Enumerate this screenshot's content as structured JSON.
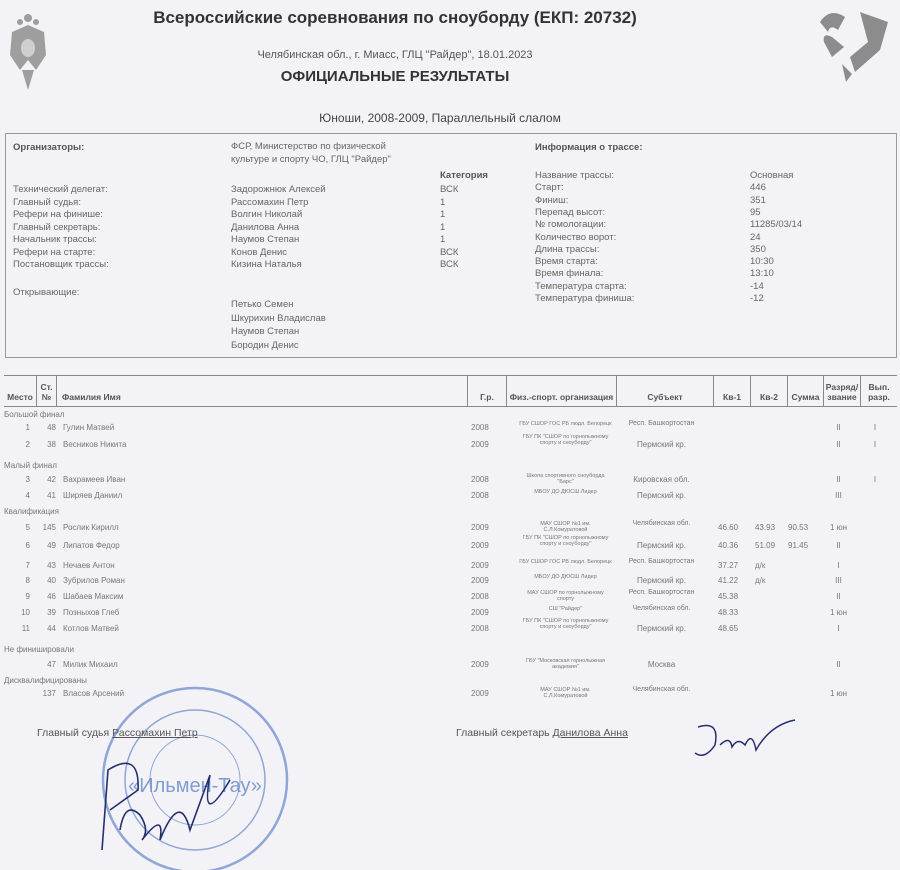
{
  "header": {
    "title": "Всероссийские соревнования по сноуборду (ЕКП: 20732)",
    "location": "Челябинская обл., г. Миасс, ГЛЦ \"Райдер\", 18.01.2023",
    "doc_title": "ОФИЦИАЛЬНЫЕ РЕЗУЛЬТАТЫ",
    "category": "Юноши, 2008-2009, Параллельный слалом",
    "left_logo": "coat-of-arms-icon",
    "right_logo": "sport-ministry-logo"
  },
  "officials": {
    "organizers_label": "Организаторы:",
    "organizers_value": "ФСР, Министерство по физической культуре и спорту ЧО, ГЛЦ \"Райдер\"",
    "category_header": "Категория",
    "rows": [
      {
        "role": "Технический делегат:",
        "name": "Задорожнюк Алексей",
        "cat": "ВСК"
      },
      {
        "role": "Главный судья:",
        "name": "Рассомахин Петр",
        "cat": "1"
      },
      {
        "role": "Рефери на финише:",
        "name": "Волгин Николай",
        "cat": "1"
      },
      {
        "role": "Главный секретарь:",
        "name": "Данилова Анна",
        "cat": "1"
      },
      {
        "role": "Начальник трассы:",
        "name": "Наумов Степан",
        "cat": "1"
      },
      {
        "role": "Рефери на старте:",
        "name": "Конов Денис",
        "cat": "ВСК"
      },
      {
        "role": "Постановщик трассы:",
        "name": "Кизина Наталья",
        "cat": "ВСК"
      }
    ],
    "openers_label": "Открывающие:",
    "openers": [
      "Петько Семен",
      "Шкурихин Владислав",
      "Наумов Степан",
      "Бородин Денис"
    ]
  },
  "track": {
    "title": "Информация о трассе:",
    "rows": [
      {
        "k": "Название трассы:",
        "v": "Основная"
      },
      {
        "k": "Старт:",
        "v": "446"
      },
      {
        "k": "Финиш:",
        "v": "351"
      },
      {
        "k": "Перепад высот:",
        "v": "95"
      },
      {
        "k": "№ гомологации:",
        "v": "11285/03/14"
      },
      {
        "k": "Количество ворот:",
        "v": "24"
      },
      {
        "k": "Длина трассы:",
        "v": "350"
      },
      {
        "k": "Время старта:",
        "v": "10:30"
      },
      {
        "k": "Время финала:",
        "v": "13:10"
      },
      {
        "k": "Температура старта:",
        "v": "-14"
      },
      {
        "k": "Температура финиша:",
        "v": "-12"
      }
    ]
  },
  "table": {
    "columns": {
      "place": "Место",
      "bib": "Ст. №",
      "name": "Фамилия Имя",
      "year": "Г.р.",
      "org": "Физ.-спорт. организация",
      "region": "Субъект",
      "q1": "Кв-1",
      "q2": "Кв-2",
      "sum": "Сумма",
      "rank": "Разряд/ звание",
      "earned": "Вып. разр."
    },
    "groups": [
      {
        "label": "Большой финал",
        "rows": [
          {
            "place": "1",
            "bib": "48",
            "name": "Гулин Матвей",
            "year": "2008",
            "org": "ГБУ СШОР ГОС РБ людл. Белорецк",
            "region": "Респ. Башкортостан",
            "q1": "",
            "q2": "",
            "sum": "",
            "rank": "II",
            "earned": "I"
          },
          {
            "place": "2",
            "bib": "38",
            "name": "Весников Никита",
            "year": "2009",
            "org": "ГБУ ПК \"СШОР по горнолыжному спорту и сноуборду\"",
            "region": "Пермский кр.",
            "q1": "",
            "q2": "",
            "sum": "",
            "rank": "II",
            "earned": "I"
          }
        ]
      },
      {
        "label": "Малый финал",
        "rows": [
          {
            "place": "3",
            "bib": "42",
            "name": "Вахрамеев Иван",
            "year": "2008",
            "org": "Школа спортивного сноуборда \"Барс\"",
            "region": "Кировская обл.",
            "q1": "",
            "q2": "",
            "sum": "",
            "rank": "II",
            "earned": "I"
          },
          {
            "place": "4",
            "bib": "41",
            "name": "Ширяев Даниил",
            "year": "2008",
            "org": "МБОУ ДО ДЮСШ Лидер",
            "region": "Пермский кр.",
            "q1": "",
            "q2": "",
            "sum": "",
            "rank": "III",
            "earned": ""
          }
        ]
      },
      {
        "label": "Квалификация",
        "rows": [
          {
            "place": "5",
            "bib": "145",
            "name": "Рослик Кирилл",
            "year": "2009",
            "org": "МАУ СШОР №1 им. С.Л.Комуратовой",
            "region": "Челябинская обл.",
            "q1": "46.60",
            "q2": "43.93",
            "sum": "90.53",
            "rank": "1 юн",
            "earned": ""
          },
          {
            "place": "6",
            "bib": "49",
            "name": "Липатов Федор",
            "year": "2009",
            "org": "ГБУ ПК \"СШОР по горнолыжному спорту и сноуборду\"",
            "region": "Пермский кр.",
            "q1": "40.36",
            "q2": "51.09",
            "sum": "91.45",
            "rank": "II",
            "earned": ""
          },
          {
            "place": "7",
            "bib": "43",
            "name": "Нечаев Антон",
            "year": "2009",
            "org": "ГБУ СШОР ГОС РБ людл. Белорецк",
            "region": "Респ. Башкортостан",
            "q1": "37.27",
            "q2": "д/к",
            "sum": "",
            "rank": "I",
            "earned": ""
          },
          {
            "place": "8",
            "bib": "40",
            "name": "Зубрилов Роман",
            "year": "2009",
            "org": "МБОУ ДО ДЮСШ Лидер",
            "region": "Пермский кр.",
            "q1": "41.22",
            "q2": "д/к",
            "sum": "",
            "rank": "III",
            "earned": ""
          },
          {
            "place": "9",
            "bib": "46",
            "name": "Шабаев Максим",
            "year": "2008",
            "org": "МАУ СШОР по горнолыжному спорту",
            "region": "Респ. Башкортостан",
            "q1": "45.38",
            "q2": "",
            "sum": "",
            "rank": "II",
            "earned": ""
          },
          {
            "place": "10",
            "bib": "39",
            "name": "Позныхов Глеб",
            "year": "2009",
            "org": "СШ \"Райдер\"",
            "region": "Челябинская обл.",
            "q1": "48.33",
            "q2": "",
            "sum": "",
            "rank": "1 юн",
            "earned": ""
          },
          {
            "place": "11",
            "bib": "44",
            "name": "Котлов Матвей",
            "year": "2008",
            "org": "ГБУ ПК \"СШОР по горнолыжному спорту и сноуборду\"",
            "region": "Пермский кр.",
            "q1": "48.65",
            "q2": "",
            "sum": "",
            "rank": "I",
            "earned": ""
          }
        ]
      },
      {
        "label": "Не финишировали",
        "rows": [
          {
            "place": "",
            "bib": "47",
            "name": "Милик Михаил",
            "year": "2009",
            "org": "ГБУ \"Московская горнолыжная академия\"",
            "region": "Москва",
            "q1": "",
            "q2": "",
            "sum": "",
            "rank": "II",
            "earned": ""
          }
        ]
      },
      {
        "label": "Дисквалифицированы",
        "rows": [
          {
            "place": "",
            "bib": "137",
            "name": "Власов Арсений",
            "year": "2009",
            "org": "МАУ СШОР №1 им. С.Л.Комуратовой",
            "region": "Челябинская обл.",
            "q1": "",
            "q2": "",
            "sum": "",
            "rank": "1 юн",
            "earned": ""
          }
        ]
      }
    ]
  },
  "footer": {
    "judge_label": "Главный судья",
    "judge_name": "Рассомахин Петр",
    "secretary_label": "Главный секретарь",
    "secretary_name": "Данилова Анна",
    "stamp_text": "«Ильмен-Тау»",
    "stamp_ring": "РОССИЙСКАЯ ФЕДЕРАЦИЯ · АКЦИОНЕРНОЕ ОБЩЕСТВО · ЧЕЛЯБИНСКАЯ ОБЛАСТЬ г. МИАСС",
    "stamp_color": "#5a7fc0"
  }
}
